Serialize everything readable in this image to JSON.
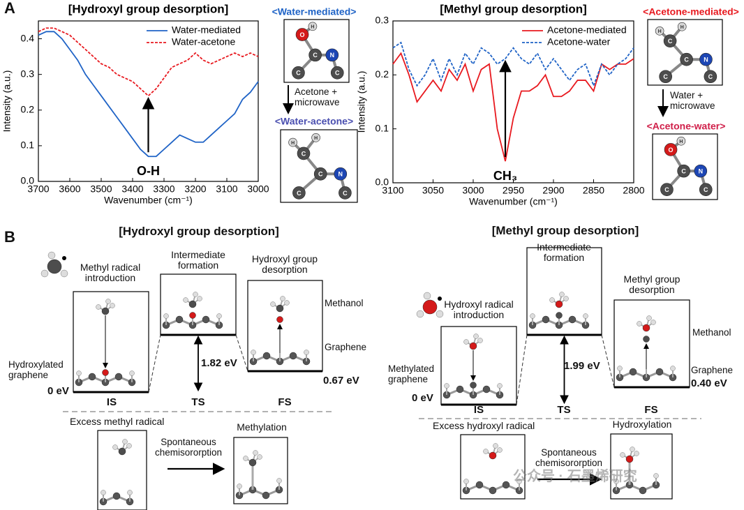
{
  "chart_data": [
    {
      "type": "line",
      "title": "[Hydroxyl group desorption]",
      "xlabel": "Wavenumber (cm⁻¹)",
      "ylabel": "Intensity (a.u.)",
      "x": [
        3700,
        3675,
        3650,
        3625,
        3600,
        3575,
        3550,
        3525,
        3500,
        3475,
        3450,
        3425,
        3400,
        3375,
        3350,
        3325,
        3300,
        3275,
        3250,
        3225,
        3200,
        3175,
        3150,
        3125,
        3100,
        3075,
        3050,
        3025,
        3000
      ],
      "xlim": [
        3700,
        3000
      ],
      "xticks": [
        3700,
        3600,
        3500,
        3400,
        3300,
        3200,
        3100,
        3000
      ],
      "ylim": [
        0,
        0.45
      ],
      "yticks": [
        {
          "value": 0,
          "label": "0.0"
        },
        0.1,
        0.2,
        0.3,
        0.4
      ],
      "legend": "upper right",
      "annotation": "O-H",
      "series": [
        {
          "name": "Water-mediated",
          "color": "#1f63c6",
          "dashed": false,
          "values": [
            0.41,
            0.42,
            0.42,
            0.4,
            0.37,
            0.34,
            0.3,
            0.27,
            0.24,
            0.21,
            0.18,
            0.15,
            0.12,
            0.09,
            0.07,
            0.07,
            0.09,
            0.11,
            0.13,
            0.12,
            0.11,
            0.11,
            0.13,
            0.15,
            0.17,
            0.19,
            0.23,
            0.25,
            0.28
          ]
        },
        {
          "name": "Water-acetone",
          "color": "#e8191f",
          "dashed": true,
          "values": [
            0.42,
            0.43,
            0.43,
            0.42,
            0.41,
            0.39,
            0.37,
            0.35,
            0.33,
            0.32,
            0.3,
            0.29,
            0.28,
            0.26,
            0.24,
            0.26,
            0.29,
            0.32,
            0.33,
            0.34,
            0.36,
            0.34,
            0.33,
            0.34,
            0.35,
            0.36,
            0.35,
            0.36,
            0.35
          ]
        }
      ]
    },
    {
      "type": "line",
      "title": "[Methyl group desorption]",
      "xlabel": "Wavenumber (cm⁻¹)",
      "ylabel": "Intensity (a.u.)",
      "x": [
        3100,
        3090,
        3080,
        3070,
        3060,
        3050,
        3040,
        3030,
        3020,
        3010,
        3000,
        2990,
        2980,
        2970,
        2960,
        2950,
        2940,
        2930,
        2920,
        2910,
        2900,
        2890,
        2880,
        2870,
        2860,
        2850,
        2840,
        2830,
        2820,
        2810,
        2800
      ],
      "xlim": [
        3100,
        2800
      ],
      "xticks": [
        3100,
        3050,
        3000,
        2950,
        2900,
        2850,
        2800
      ],
      "ylim": [
        0,
        0.3
      ],
      "yticks": [
        {
          "value": 0,
          "label": "0.0"
        },
        0.1,
        0.2,
        0.3
      ],
      "legend": "upper right",
      "annotation": "CH₃",
      "series": [
        {
          "name": "Acetone-mediated",
          "color": "#e8191f",
          "dashed": false,
          "values": [
            0.22,
            0.24,
            0.2,
            0.15,
            0.17,
            0.19,
            0.17,
            0.21,
            0.19,
            0.22,
            0.17,
            0.21,
            0.22,
            0.1,
            0.04,
            0.12,
            0.17,
            0.17,
            0.18,
            0.2,
            0.16,
            0.16,
            0.17,
            0.19,
            0.19,
            0.17,
            0.22,
            0.21,
            0.22,
            0.22,
            0.23
          ]
        },
        {
          "name": "Acetone-water",
          "color": "#1f63c6",
          "dashed": true,
          "values": [
            0.25,
            0.26,
            0.21,
            0.18,
            0.2,
            0.23,
            0.19,
            0.23,
            0.2,
            0.24,
            0.22,
            0.25,
            0.24,
            0.22,
            0.23,
            0.25,
            0.23,
            0.22,
            0.24,
            0.21,
            0.23,
            0.21,
            0.19,
            0.21,
            0.22,
            0.18,
            0.22,
            0.2,
            0.22,
            0.23,
            0.25
          ]
        }
      ]
    }
  ],
  "panel_labels": [
    "A",
    "B"
  ],
  "molecules_a": [
    {
      "label": "<Water-mediated>",
      "color": "#1f63c6",
      "atoms": [
        "O",
        "H",
        "C",
        "N",
        "C",
        "C"
      ]
    },
    {
      "label": "<Water-acetone>",
      "color": "#4a4fb0",
      "atoms": [
        "C",
        "H",
        "H",
        "C",
        "N",
        "C",
        "C"
      ]
    },
    {
      "label": "<Acetone-mediated>",
      "color": "#e8191f",
      "atoms": [
        "C",
        "H",
        "H",
        "C",
        "N",
        "C",
        "C"
      ]
    },
    {
      "label": "<Acetone-water>",
      "color": "#d0204a",
      "atoms": [
        "O",
        "H",
        "C",
        "N",
        "C",
        "C"
      ]
    }
  ],
  "transitions_a": [
    "Acetone +\nmicrowave",
    "Water +\nmicrowave"
  ],
  "panel_b": [
    {
      "title": "[Hydroxyl group desorption]",
      "stages": [
        {
          "label": "IS",
          "caption": "Methyl radical\nintroduction",
          "energy": "0 eV"
        },
        {
          "label": "TS",
          "caption": "Intermediate\nformation",
          "energy": "1.82 eV"
        },
        {
          "label": "FS",
          "caption": "Hydroxyl group\ndesorption",
          "energy": "0.67 eV"
        }
      ],
      "substrate": "Hydroxylated\ngraphene",
      "product": "Methanol",
      "surface": "Graphene",
      "side": {
        "title": "Excess methyl radical",
        "process": "Spontaneous\nchemisororption",
        "result": "Methylation"
      }
    },
    {
      "title": "[Methyl group desorption]",
      "stages": [
        {
          "label": "IS",
          "caption": "Hydroxyl radical\nintroduction",
          "energy": "0 eV"
        },
        {
          "label": "TS",
          "caption": "Intermediate\nformation",
          "energy": "1.99 eV"
        },
        {
          "label": "FS",
          "caption": "Methyl group\ndesorption",
          "energy": "0.40 eV"
        }
      ],
      "substrate": "Methylated\ngraphene",
      "product": "Methanol",
      "surface": "Graphene",
      "side": {
        "title": "Excess hydroxyl radical",
        "process": "Spontaneous\nchemisororption",
        "result": "Hydroxylation"
      }
    }
  ],
  "watermark": "公众号 · 石墨烯研究"
}
